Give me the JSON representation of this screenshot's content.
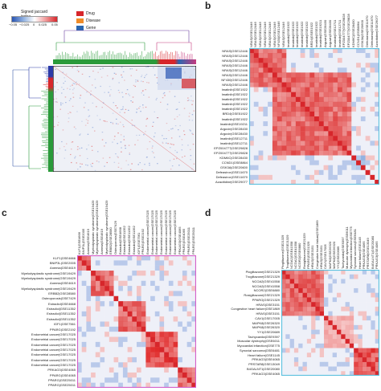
{
  "panels": {
    "a": {
      "letter": "a",
      "legend_title": "Signed jaccard index",
      "legend_ticks": [
        "−0.05",
        "−0.025",
        "0",
        "0.025",
        "0.05"
      ],
      "categories": [
        {
          "label": "Drug",
          "color": "#d7262b"
        },
        {
          "label": "Disease",
          "color": "#f08c28"
        },
        {
          "label": "Gene",
          "color": "#2a67b0"
        }
      ]
    },
    "b": {
      "letter": "b",
      "labels": [
        "NRAS|GSE12446",
        "NRAS|GSE12446",
        "NRAS|GSE12446",
        "NRAS|GSE12446",
        "NRAS|GSE12446",
        "NRAS|GSE12446",
        "NF430|GSE12446",
        "NRAS|GSE12446",
        "Imatinib|GSE1922",
        "Imatinib|GSE1922",
        "Imatinib|GSE1922",
        "Imatinib|GSE1922",
        "Imatinib|GSE1922",
        "BRD4|GSE51922",
        "Imatinib|GSE1922",
        "Imatinib|GSE19211",
        "Arguvin|GSE28430",
        "Arguvin|GSE28430",
        "Imatinib|GSE12711",
        "Imatinib|GSE12711",
        "EPZ004777|GSE29828",
        "EPZ004777|GSE29828",
        "KDM6C|GSE28430",
        "CCND1|GSE8864",
        "GSK3A|GSE20600",
        "Defeasirox|GSE11670",
        "Defeasirox|GSE11670",
        "Azacitidine|GSE29077"
      ]
    },
    "c": {
      "letter": "c",
      "labels": [
        "KLF1|GSE4666",
        "BNIP3L|GSE2005",
        "Anemia|GSE4619",
        "Myelodysplastic syndrome|GSE19429",
        "Myelodysplastic syndrome|GSE19429",
        "Anemia|GSE4619",
        "Myelodysplastic syndrome|GSE19429",
        "ERBB2|GSE28580",
        "Osteoporosis|GSE7429",
        "Estradiol|GSE4668",
        "Estradiol|GSE11352",
        "Estradiol|GSE11352",
        "Estradiol|GSE11352",
        "IGF1|GSE7561",
        "PPARG|GSE2192",
        "Endometrial cancer|GSE17025",
        "Endometrial cancer|GSE17025",
        "Endometrial cancer|GSE17025",
        "Endometrial cancer|GSE17025",
        "Endometrial cancer|GSE17025",
        "Endometrial cancer|GSE17025",
        "Endometrial cancer|GSE17025",
        "PRKAG3|GSE4065",
        "PPARG|GSE4065",
        "PPARG|GSE25011",
        "PPARG|GSE25011"
      ]
    },
    "d": {
      "letter": "d",
      "labels": [
        "Pioglitazone|GSE21329",
        "Troglitazone|GSE21329",
        "NCOA2|GSE41558",
        "NCOA2|GSE41558",
        "NCOR2|GSE6880",
        "Rosiglitazone|GSE21329",
        "PPARG|GSE21329",
        "HRAS|GSE3151",
        "Congestive heart failure|GSE1869",
        "HRAS|GSE3151",
        "CAV1|GSE17005",
        "MAPK8|GSE26320",
        "MAPK8|GSE26320",
        "YY1|GSE20689",
        "Tachycardia|GSE9397",
        "Muscular dystrophy|GSE6011",
        "Myocardial infarction|GSE775",
        "Synovial sarcoma|GSE6481",
        "Heart failure|GSE1145",
        "PRKAG3|GSE4065",
        "PRSTAR8|GSE13049",
        "B4GALNT1|GSE20080",
        "PRKAG3|GSE4065"
      ]
    }
  }
}
